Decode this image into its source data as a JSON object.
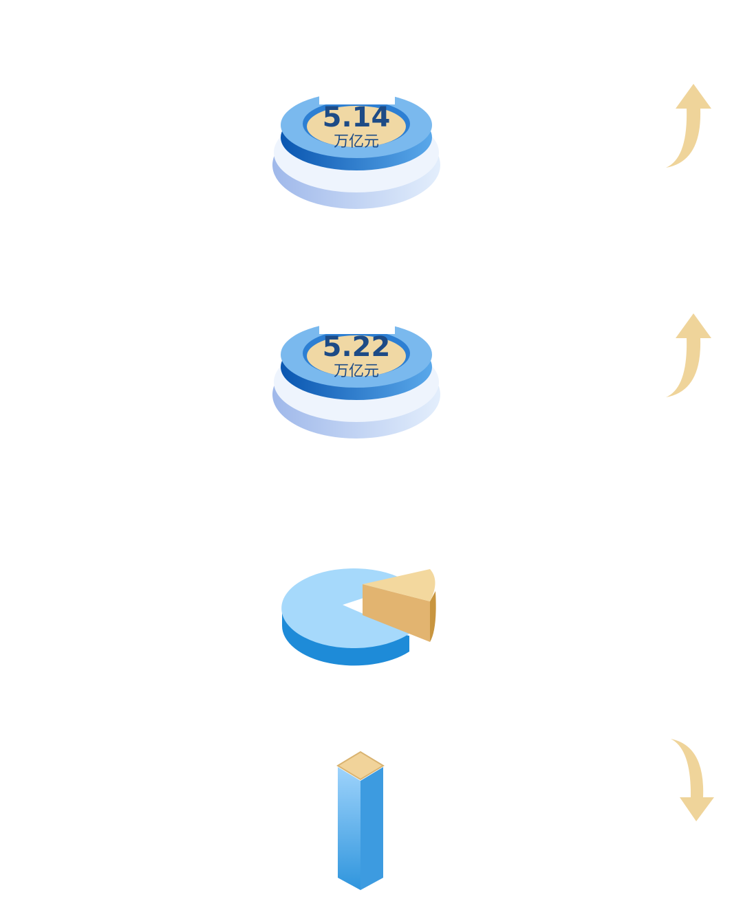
{
  "items": [
    {
      "value": "5.14",
      "unit": "万亿元"
    },
    {
      "value": "5.22",
      "unit": "万亿元"
    }
  ]
}
